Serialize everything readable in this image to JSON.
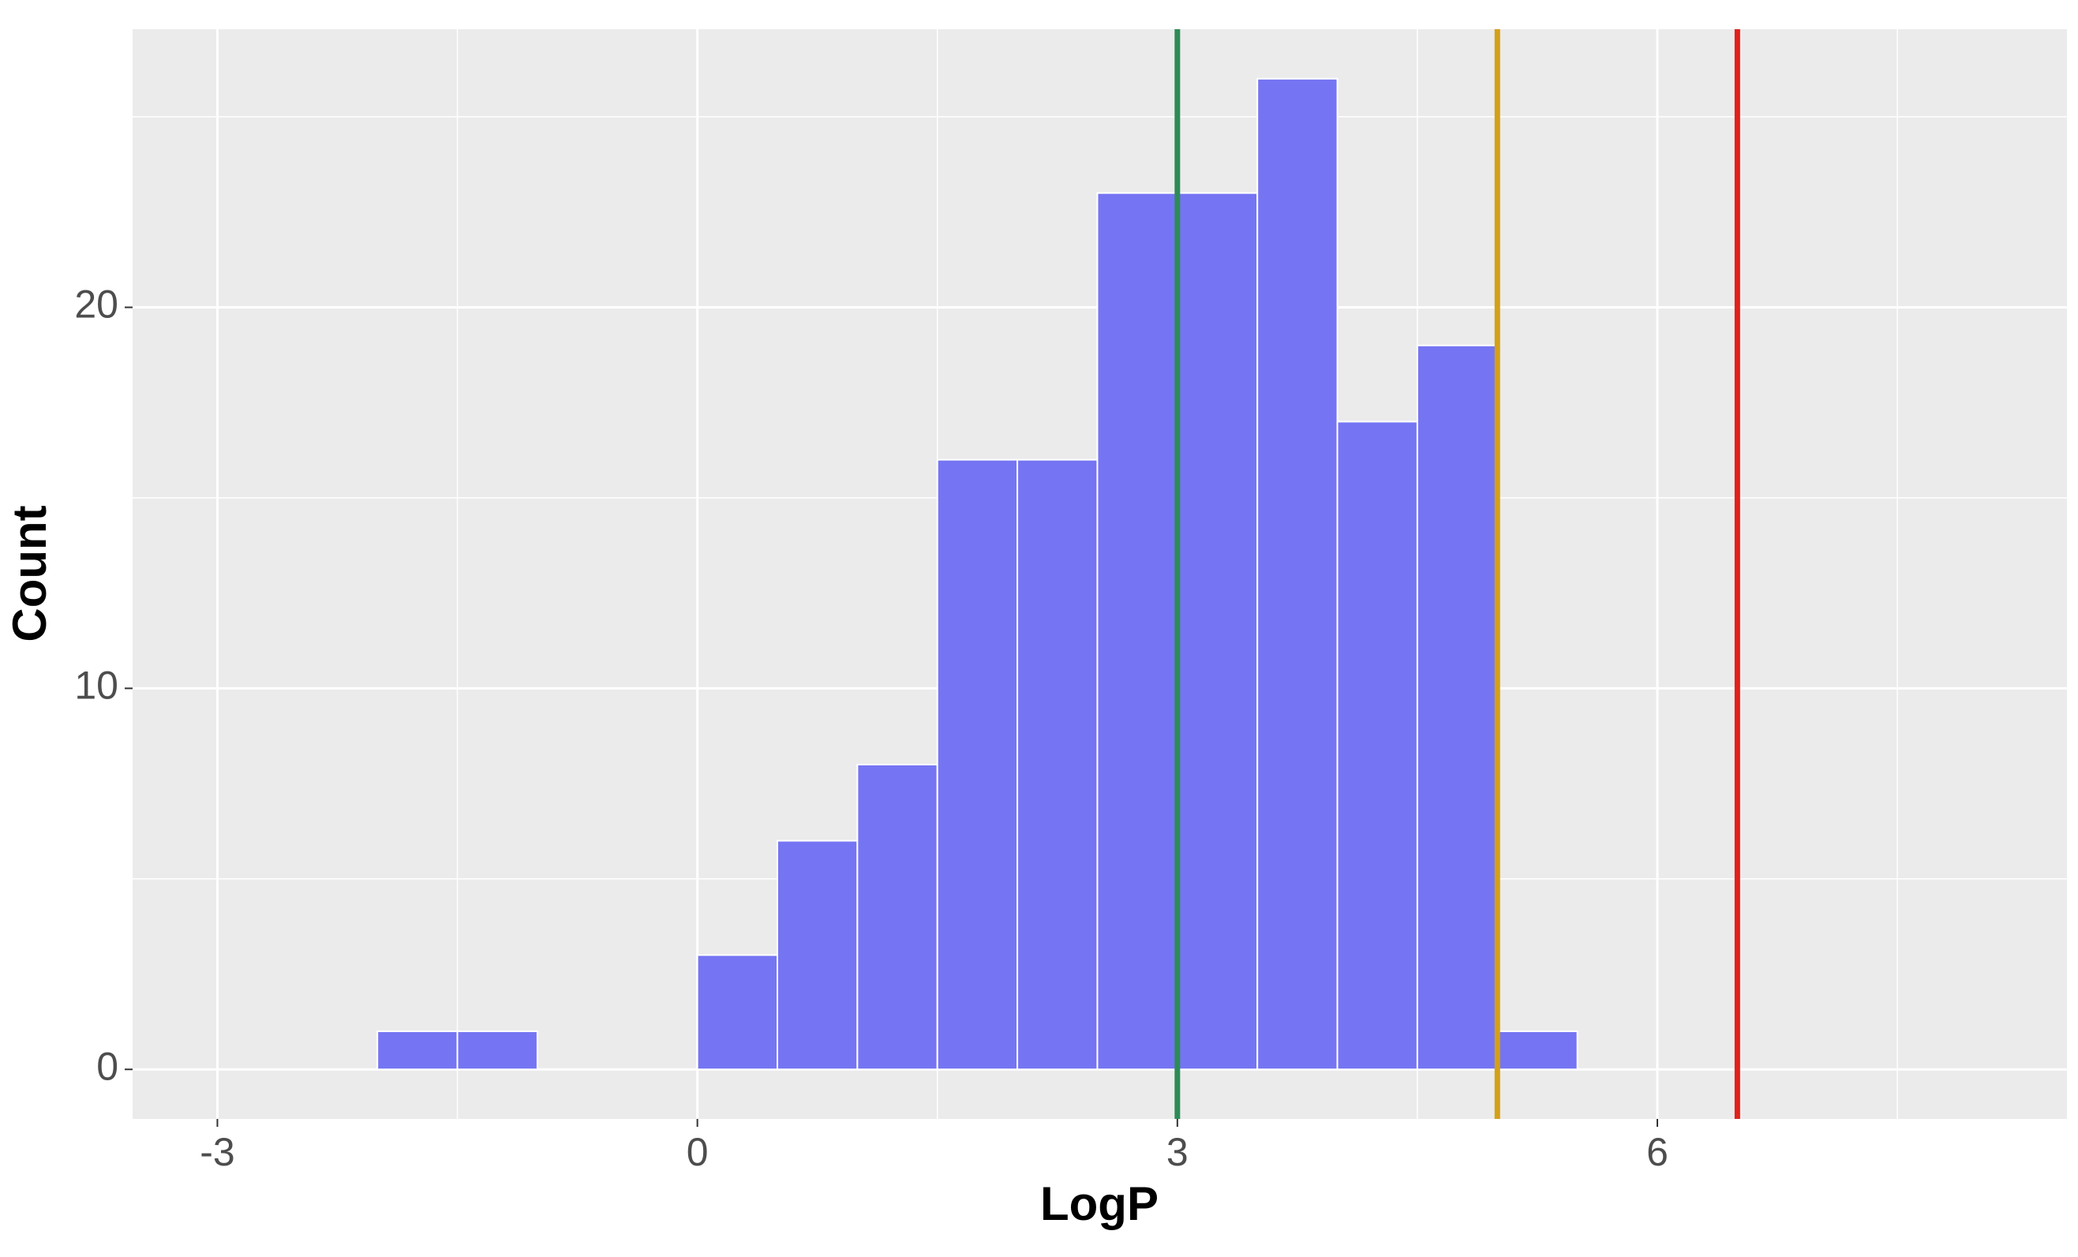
{
  "chart_data": {
    "type": "histogram",
    "x_label": "LogP",
    "y_label": "Count",
    "bins": [
      -2,
      -1.5,
      -1,
      -0.5,
      0,
      0.5,
      1,
      1.5,
      2,
      2.5,
      3,
      3.5,
      4,
      4.5,
      5,
      5.5
    ],
    "values": [
      1,
      1,
      0,
      0,
      3,
      6,
      8,
      16,
      16,
      23,
      23,
      26,
      17,
      19,
      1
    ],
    "color": "#7575f3",
    "xlim": [
      -3.53,
      8.56
    ],
    "xticks": [
      -3,
      0,
      3,
      6
    ],
    "minor_xticks": [
      -1.5,
      1.5,
      4.5,
      7.5
    ],
    "ylim": [
      -1.3,
      27.3
    ],
    "yticks": [
      0,
      10,
      20
    ],
    "minor_yticks": [
      5,
      15,
      25
    ],
    "grid": true,
    "vlines": [
      {
        "x": 3,
        "color": "#2e8b57"
      },
      {
        "x": 5,
        "color": "#d4a017"
      },
      {
        "x": 6.5,
        "color": "#e0211a"
      }
    ]
  }
}
